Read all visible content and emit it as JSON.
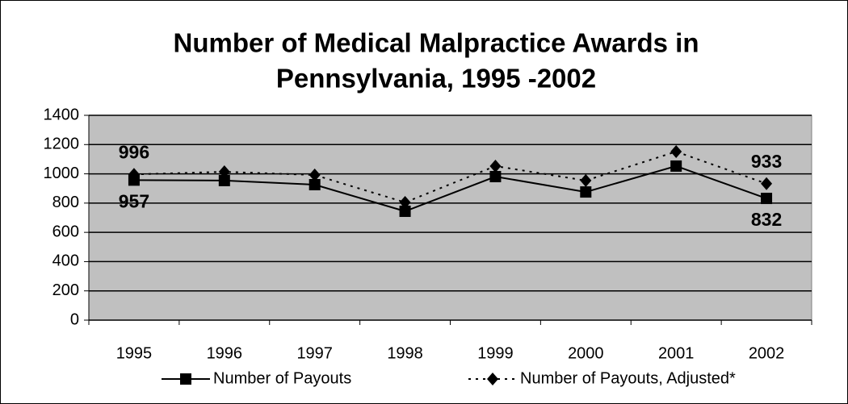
{
  "chart_data": {
    "type": "line",
    "title": [
      "Number of Medical Malpractice Awards in",
      "Pennsylvania, 1995 -2002"
    ],
    "categories": [
      "1995",
      "1996",
      "1997",
      "1998",
      "1999",
      "2000",
      "2001",
      "2002"
    ],
    "series": [
      {
        "name": "Number of Payouts",
        "color": "#000000",
        "dash": "solid",
        "marker": "square",
        "values": [
          957,
          954,
          926,
          744,
          981,
          876,
          1053,
          832
        ],
        "labeled_points": [
          0,
          7
        ]
      },
      {
        "name": "Number of Payouts, Adjusted*",
        "color": "#000000",
        "dash": "dotted",
        "marker": "diamond",
        "values": [
          996,
          1014,
          992,
          805,
          1053,
          954,
          1152,
          933
        ],
        "labeled_points": [
          0,
          7
        ]
      }
    ],
    "ylim": [
      0,
      1400
    ],
    "yticks": [
      0,
      200,
      400,
      600,
      800,
      1000,
      1200,
      1400
    ],
    "grid": true,
    "plot_background": "#c0c0c0",
    "legend": "bottom"
  }
}
